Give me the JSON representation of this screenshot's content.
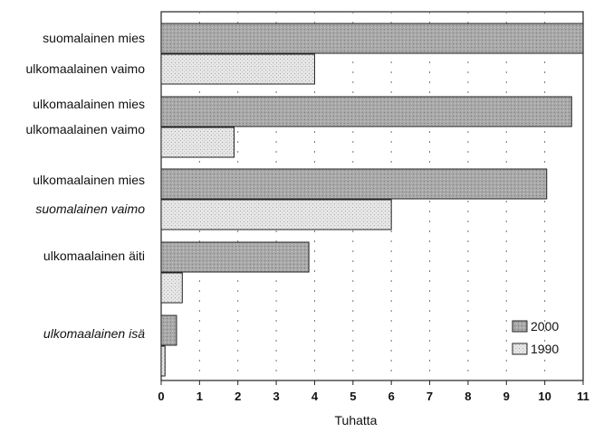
{
  "chart_data": {
    "type": "bar",
    "orientation": "horizontal",
    "title": "",
    "xlabel": "Tuhatta",
    "ylabel": "",
    "xlim": [
      0,
      11
    ],
    "ticks": [
      "0",
      "1",
      "2",
      "3",
      "4",
      "5",
      "6",
      "7",
      "8",
      "9",
      "10",
      "11"
    ],
    "grid": "dotted vertical",
    "legend_position": "bottom-right",
    "groups": [
      {
        "labels": [
          {
            "text": "suomalainen mies",
            "italic": false
          },
          {
            "text": "ulkomaalainen vaimo",
            "italic": false
          }
        ]
      },
      {
        "labels": [
          {
            "text": "ulkomaalainen mies",
            "italic": false
          },
          {
            "text": "ulkomaalainen vaimo",
            "italic": false
          }
        ]
      },
      {
        "labels": [
          {
            "text": "ulkomaalainen mies",
            "italic": false
          },
          {
            "text": "suomalainen vaimo",
            "italic": true
          }
        ]
      },
      {
        "labels": [
          {
            "text": "ulkomaalainen äiti",
            "italic": false
          }
        ]
      },
      {
        "labels": [
          {
            "text": "ulkomaalainen isä",
            "italic": true
          }
        ]
      }
    ],
    "series": [
      {
        "name": "2000",
        "color": "#a9a9a9",
        "values": [
          11.0,
          10.7,
          10.05,
          3.85,
          0.4
        ]
      },
      {
        "name": "1990",
        "color": "#e4e4e4",
        "values": [
          4.0,
          1.9,
          6.0,
          0.55,
          0.1
        ]
      }
    ]
  }
}
